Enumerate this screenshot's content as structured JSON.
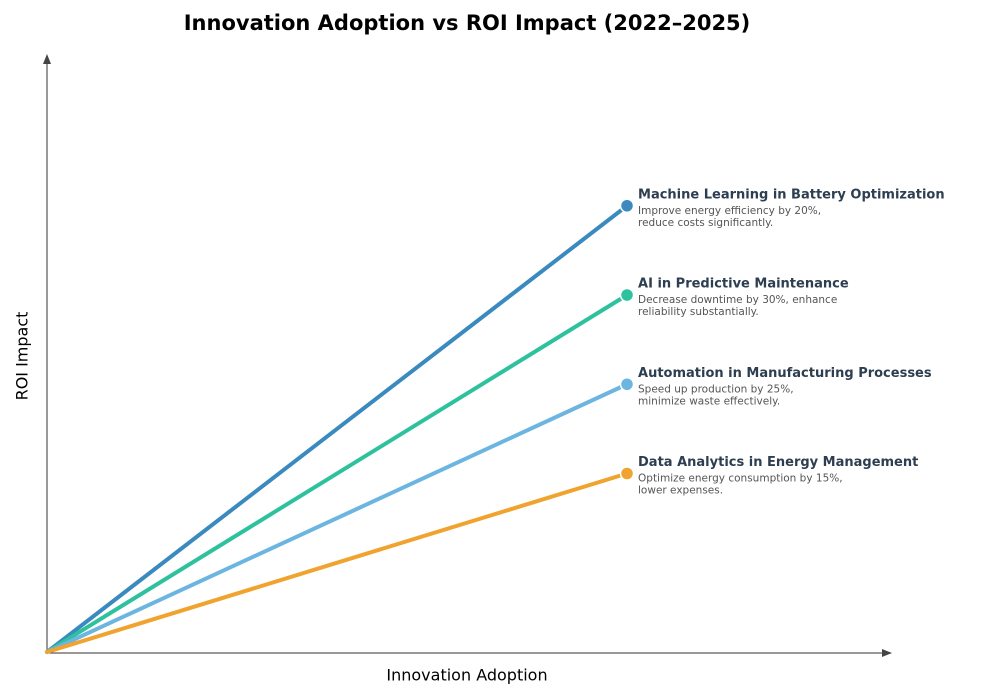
{
  "chart_data": {
    "type": "line",
    "title": "Innovation Adoption vs ROI Impact (2022–2025)",
    "x_label": "Innovation Adoption",
    "y_label": "ROI Impact",
    "x": [
      0,
      7
    ],
    "xlim": [
      0,
      10
    ],
    "ylim": [
      0,
      10
    ],
    "series": [
      {
        "name": "Machine Learning in Battery Optimization",
        "color": "#3a8abf",
        "values": [
          0,
          7.5
        ],
        "description": [
          "Improve energy efficiency by 20%,",
          "reduce costs significantly."
        ]
      },
      {
        "name": "AI in Predictive Maintenance",
        "color": "#2ec19d",
        "values": [
          0,
          6
        ],
        "description": [
          "Decrease downtime by 30%, enhance",
          "reliability substantially."
        ]
      },
      {
        "name": "Automation in Manufacturing Processes",
        "color": "#6cb5e0",
        "values": [
          0,
          4.5
        ],
        "description": [
          "Speed up production by 25%,",
          "minimize waste effectively."
        ]
      },
      {
        "name": "Data Analytics in Energy Management",
        "color": "#f0a32e",
        "values": [
          0,
          3
        ],
        "description": [
          "Optimize energy consumption by 15%,",
          "lower expenses."
        ]
      }
    ]
  }
}
